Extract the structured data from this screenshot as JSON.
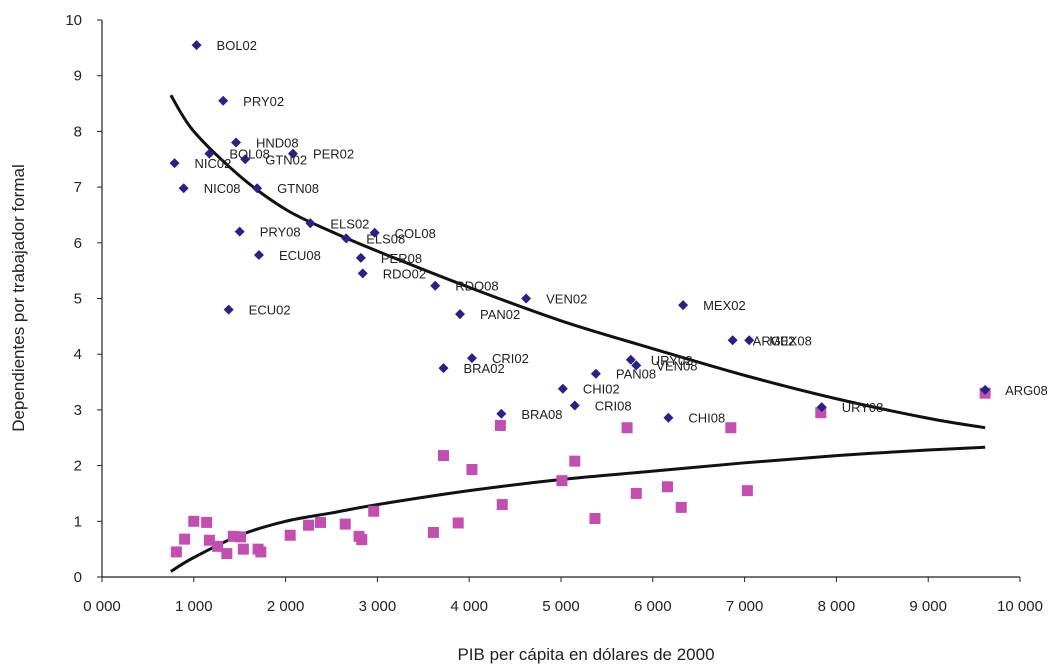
{
  "chart_data": {
    "type": "scatter",
    "title": "",
    "xlabel": "PIB per cápita en dólares de 2000",
    "ylabel": "Dependientes por trabajador formal",
    "xlim": [
      0,
      10000
    ],
    "ylim": [
      0,
      10
    ],
    "x_ticks": [
      "0 000",
      "1 000",
      "2 000",
      "3 000",
      "4 000",
      "5 000",
      "6 000",
      "7 000",
      "8 000",
      "9 000",
      "10 000"
    ],
    "y_ticks": [
      "0",
      "1",
      "2",
      "3",
      "4",
      "5",
      "6",
      "7",
      "8",
      "9",
      "10"
    ],
    "grid": false,
    "legend": "none",
    "colors": {
      "diamonds": "#2b2183",
      "squares": "#c04fb0",
      "curves": "#111111"
    },
    "series": [
      {
        "marker": "diamond",
        "labeled_points": [
          {
            "label": "BOL02",
            "x": 1030,
            "y": 9.55
          },
          {
            "label": "PRY02",
            "x": 1320,
            "y": 8.55
          },
          {
            "label": "HND08",
            "x": 1460,
            "y": 7.8
          },
          {
            "label": "BOL08",
            "x": 1170,
            "y": 7.6
          },
          {
            "label": "GTN02",
            "x": 1560,
            "y": 7.5
          },
          {
            "label": "PER02",
            "x": 2080,
            "y": 7.6
          },
          {
            "label": "NIC02",
            "x": 790,
            "y": 7.43
          },
          {
            "label": "NIC08",
            "x": 890,
            "y": 6.98
          },
          {
            "label": "GTN08",
            "x": 1690,
            "y": 6.98
          },
          {
            "label": "ELS02",
            "x": 2270,
            "y": 6.35
          },
          {
            "label": "PRY08",
            "x": 1500,
            "y": 6.2
          },
          {
            "label": "ELS08",
            "x": 2660,
            "y": 6.08
          },
          {
            "label": "COL08",
            "x": 2970,
            "y": 6.18
          },
          {
            "label": "ECU08",
            "x": 1710,
            "y": 5.78
          },
          {
            "label": "PER08",
            "x": 2820,
            "y": 5.73
          },
          {
            "label": "RDO02",
            "x": 2840,
            "y": 5.45
          },
          {
            "label": "RDO08",
            "x": 3630,
            "y": 5.23
          },
          {
            "label": "VEN02",
            "x": 4620,
            "y": 5.0
          },
          {
            "label": "PAN02",
            "x": 3900,
            "y": 4.72
          },
          {
            "label": "ECU02",
            "x": 1380,
            "y": 4.8
          },
          {
            "label": "MEX02",
            "x": 6330,
            "y": 4.88
          },
          {
            "label": "ARG02",
            "x": 6870,
            "y": 4.25
          },
          {
            "label": "MEX08",
            "x": 7050,
            "y": 4.25
          },
          {
            "label": "CRI02",
            "x": 4030,
            "y": 3.93
          },
          {
            "label": "URY02",
            "x": 5760,
            "y": 3.9
          },
          {
            "label": "VEN08",
            "x": 5820,
            "y": 3.8
          },
          {
            "label": "BRA02",
            "x": 3720,
            "y": 3.75
          },
          {
            "label": "PAN08",
            "x": 5380,
            "y": 3.65
          },
          {
            "label": "CHI02",
            "x": 5020,
            "y": 3.38
          },
          {
            "label": "CRI08",
            "x": 5150,
            "y": 3.08
          },
          {
            "label": "BRA08",
            "x": 4350,
            "y": 2.93
          },
          {
            "label": "CHI08",
            "x": 6170,
            "y": 2.86
          },
          {
            "label": "URY08",
            "x": 7840,
            "y": 3.05
          },
          {
            "label": "ARG08",
            "x": 9620,
            "y": 3.36
          }
        ]
      },
      {
        "marker": "square",
        "points": [
          [
            810,
            0.45
          ],
          [
            900,
            0.68
          ],
          [
            1000,
            1.0
          ],
          [
            1140,
            0.98
          ],
          [
            1170,
            0.66
          ],
          [
            1260,
            0.55
          ],
          [
            1360,
            0.42
          ],
          [
            1430,
            0.73
          ],
          [
            1510,
            0.72
          ],
          [
            1540,
            0.5
          ],
          [
            1700,
            0.5
          ],
          [
            1730,
            0.45
          ],
          [
            2050,
            0.75
          ],
          [
            2250,
            0.93
          ],
          [
            2380,
            0.98
          ],
          [
            2650,
            0.95
          ],
          [
            2800,
            0.73
          ],
          [
            2830,
            0.67
          ],
          [
            2960,
            1.18
          ],
          [
            3610,
            0.8
          ],
          [
            3720,
            2.18
          ],
          [
            3880,
            0.97
          ],
          [
            4030,
            1.93
          ],
          [
            4340,
            2.72
          ],
          [
            4360,
            1.3
          ],
          [
            5010,
            1.73
          ],
          [
            5150,
            2.08
          ],
          [
            5370,
            1.05
          ],
          [
            5720,
            2.68
          ],
          [
            5820,
            1.5
          ],
          [
            6160,
            1.62
          ],
          [
            6310,
            1.25
          ],
          [
            6850,
            2.68
          ],
          [
            7030,
            1.55
          ],
          [
            7830,
            2.95
          ],
          [
            9620,
            3.3
          ]
        ]
      }
    ],
    "trend_lines": [
      {
        "points": [
          [
            750,
            8.65
          ],
          [
            1000,
            8.0
          ],
          [
            1500,
            7.2
          ],
          [
            2000,
            6.6
          ],
          [
            2500,
            6.2
          ],
          [
            3000,
            5.85
          ],
          [
            4000,
            5.2
          ],
          [
            5000,
            4.6
          ],
          [
            6000,
            4.1
          ],
          [
            7000,
            3.62
          ],
          [
            8000,
            3.2
          ],
          [
            9000,
            2.85
          ],
          [
            9620,
            2.68
          ]
        ]
      },
      {
        "points": [
          [
            750,
            0.1
          ],
          [
            1000,
            0.35
          ],
          [
            1500,
            0.75
          ],
          [
            2000,
            1.0
          ],
          [
            2500,
            1.15
          ],
          [
            3000,
            1.3
          ],
          [
            4000,
            1.55
          ],
          [
            5000,
            1.75
          ],
          [
            6000,
            1.9
          ],
          [
            7000,
            2.05
          ],
          [
            8000,
            2.18
          ],
          [
            9000,
            2.28
          ],
          [
            9620,
            2.33
          ]
        ]
      }
    ]
  }
}
